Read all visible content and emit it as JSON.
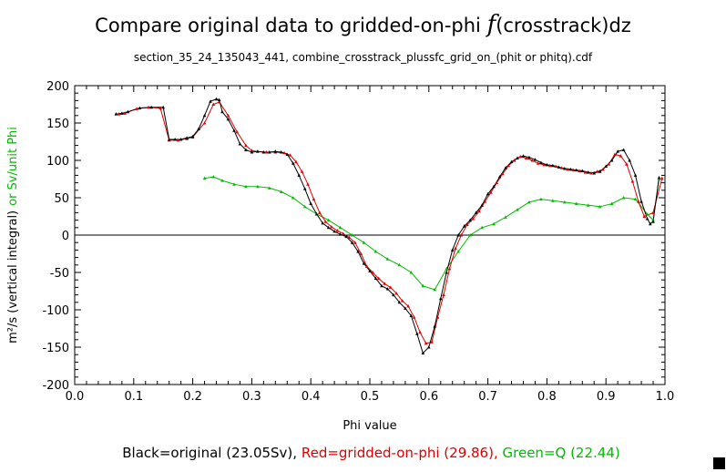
{
  "title": {
    "prefix": "Compare original data to gridded-on-phi ",
    "symbol": "f",
    "suffix": "(crosstrack)dz"
  },
  "subtitle": "section_35_24_135043_441, combine_crosstrack_plussfc_grid_on_(phit or phitq).cdf",
  "legend": {
    "black": "Black=original (23.05Sv),",
    "red": "Red=gridded-on-phi (29.86),",
    "green": "Green=Q (22.44)"
  },
  "colors": {
    "black": "#000000",
    "red": "#dd0000",
    "green": "#00bb00"
  },
  "chart_data": {
    "type": "line",
    "xlabel": "Phi value",
    "ylabel_black": "m²/s (vertical integral)",
    "ylabel_green": "or Sv/unit Phi",
    "xlim": [
      0.0,
      1.0
    ],
    "ylim": [
      -200,
      200
    ],
    "xticks": [
      "0.0",
      "0.1",
      "0.2",
      "0.3",
      "0.4",
      "0.5",
      "0.6",
      "0.7",
      "0.8",
      "0.9",
      "1.0"
    ],
    "yticks": [
      "-200",
      "-150",
      "-100",
      "-50",
      "0",
      "50",
      "100",
      "150",
      "200"
    ],
    "series": [
      {
        "name": "original",
        "color": "black",
        "x": [
          0.07,
          0.08,
          0.09,
          0.11,
          0.13,
          0.15,
          0.16,
          0.17,
          0.18,
          0.19,
          0.2,
          0.21,
          0.22,
          0.23,
          0.24,
          0.245,
          0.25,
          0.26,
          0.27,
          0.28,
          0.29,
          0.3,
          0.31,
          0.32,
          0.33,
          0.34,
          0.35,
          0.36,
          0.37,
          0.38,
          0.39,
          0.4,
          0.41,
          0.42,
          0.43,
          0.44,
          0.45,
          0.46,
          0.47,
          0.48,
          0.49,
          0.5,
          0.51,
          0.52,
          0.53,
          0.54,
          0.55,
          0.56,
          0.57,
          0.58,
          0.59,
          0.6,
          0.61,
          0.62,
          0.63,
          0.64,
          0.65,
          0.66,
          0.67,
          0.68,
          0.69,
          0.7,
          0.71,
          0.72,
          0.73,
          0.74,
          0.75,
          0.76,
          0.77,
          0.78,
          0.79,
          0.8,
          0.81,
          0.82,
          0.83,
          0.84,
          0.85,
          0.86,
          0.87,
          0.88,
          0.89,
          0.9,
          0.91,
          0.92,
          0.93,
          0.94,
          0.95,
          0.96,
          0.97,
          0.975,
          0.98,
          0.99
        ],
        "y": [
          162,
          163,
          165,
          170,
          171,
          171,
          128,
          128,
          128,
          130,
          132,
          142,
          160,
          179,
          182,
          181,
          165,
          155,
          140,
          122,
          114,
          111,
          112,
          111,
          111,
          112,
          111,
          108,
          96,
          80,
          62,
          42,
          28,
          16,
          10,
          5,
          1,
          -2,
          -10,
          -22,
          -38,
          -48,
          -58,
          -68,
          -72,
          -80,
          -90,
          -98,
          -108,
          -132,
          -158,
          -150,
          -122,
          -85,
          -50,
          -20,
          0,
          12,
          20,
          30,
          40,
          55,
          65,
          78,
          90,
          98,
          103,
          106,
          104,
          101,
          97,
          94,
          93,
          91,
          89,
          88,
          87,
          86,
          84,
          83,
          85,
          92,
          100,
          112,
          114,
          100,
          80,
          45,
          22,
          15,
          18,
          77
        ]
      },
      {
        "name": "gridded-on-phi",
        "color": "red",
        "x": [
          0.075,
          0.085,
          0.105,
          0.125,
          0.145,
          0.16,
          0.175,
          0.19,
          0.2,
          0.22,
          0.235,
          0.245,
          0.26,
          0.275,
          0.29,
          0.3,
          0.31,
          0.325,
          0.34,
          0.355,
          0.365,
          0.375,
          0.385,
          0.395,
          0.405,
          0.415,
          0.425,
          0.435,
          0.445,
          0.455,
          0.465,
          0.475,
          0.485,
          0.495,
          0.505,
          0.515,
          0.525,
          0.535,
          0.545,
          0.555,
          0.565,
          0.575,
          0.585,
          0.595,
          0.605,
          0.615,
          0.625,
          0.635,
          0.645,
          0.655,
          0.665,
          0.675,
          0.685,
          0.695,
          0.705,
          0.715,
          0.725,
          0.735,
          0.745,
          0.755,
          0.765,
          0.775,
          0.785,
          0.795,
          0.805,
          0.815,
          0.825,
          0.835,
          0.845,
          0.855,
          0.865,
          0.875,
          0.885,
          0.895,
          0.905,
          0.915,
          0.925,
          0.935,
          0.945,
          0.955,
          0.965,
          0.98,
          0.995
        ],
        "y": [
          162,
          163,
          169,
          171,
          170,
          127,
          127,
          129,
          131,
          150,
          175,
          178,
          160,
          138,
          120,
          113,
          112,
          111,
          111,
          110,
          107,
          98,
          85,
          68,
          48,
          30,
          18,
          11,
          6,
          2,
          -3,
          -10,
          -25,
          -42,
          -50,
          -58,
          -65,
          -70,
          -78,
          -88,
          -95,
          -110,
          -130,
          -145,
          -143,
          -110,
          -80,
          -45,
          -18,
          0,
          14,
          22,
          32,
          45,
          57,
          70,
          82,
          93,
          100,
          105,
          103,
          100,
          96,
          94,
          93,
          92,
          90,
          88,
          87,
          86,
          84,
          83,
          85,
          88,
          95,
          108,
          106,
          95,
          72,
          45,
          25,
          30,
          76
        ]
      },
      {
        "name": "Q",
        "color": "green",
        "x": [
          0.22,
          0.235,
          0.25,
          0.27,
          0.29,
          0.31,
          0.33,
          0.35,
          0.37,
          0.39,
          0.41,
          0.43,
          0.45,
          0.47,
          0.49,
          0.51,
          0.53,
          0.55,
          0.57,
          0.59,
          0.61,
          0.63,
          0.65,
          0.67,
          0.69,
          0.71,
          0.73,
          0.75,
          0.77,
          0.79,
          0.81,
          0.83,
          0.85,
          0.87,
          0.89,
          0.91,
          0.93,
          0.95,
          0.97,
          0.98,
          0.99
        ],
        "y": [
          76,
          78,
          73,
          68,
          65,
          65,
          63,
          58,
          50,
          38,
          28,
          20,
          10,
          0,
          -10,
          -22,
          -32,
          -40,
          -50,
          -68,
          -73,
          -45,
          -22,
          0,
          10,
          15,
          24,
          34,
          44,
          48,
          46,
          44,
          42,
          40,
          38,
          42,
          50,
          48,
          28,
          20,
          75
        ]
      }
    ]
  }
}
